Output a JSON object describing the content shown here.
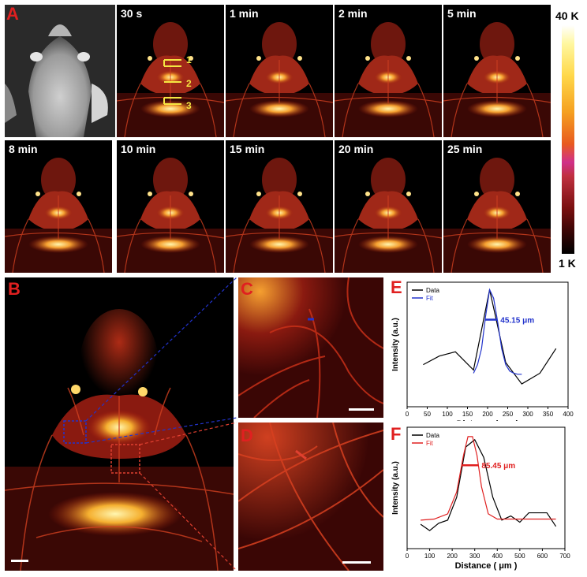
{
  "panel_labels": {
    "A": "A",
    "B": "B",
    "C": "C",
    "D": "D",
    "E": "E",
    "F": "F"
  },
  "timepoints": [
    "30 s",
    "1 min",
    "2 min",
    "5 min",
    "8 min",
    "10 min",
    "15 min",
    "20 min",
    "25 min"
  ],
  "roi_labels": [
    "1",
    "2",
    "3"
  ],
  "colorbar": {
    "max": "40 K",
    "min": "1 K"
  },
  "colors": {
    "label_red": "#e02020",
    "data_black": "#000000",
    "fit_blue": "#2233cc",
    "fit_red": "#e02020",
    "roi_yellow": "#f5e642"
  },
  "chart_data": [
    {
      "type": "line",
      "panel": "E",
      "xlabel": "Distance ( μm )",
      "ylabel": "Intensity (a.u.)",
      "xlim": [
        0,
        400
      ],
      "xticks": [
        0,
        50,
        100,
        150,
        200,
        250,
        300,
        350,
        400
      ],
      "fwhm_label": "45.15 μm",
      "legend": [
        "Data",
        "Fit"
      ],
      "series": [
        {
          "name": "Data",
          "x": [
            40,
            80,
            120,
            165,
            205,
            245,
            285,
            330,
            370
          ],
          "y": [
            0.3,
            0.38,
            0.42,
            0.25,
            1.0,
            0.32,
            0.12,
            0.22,
            0.45
          ]
        },
        {
          "name": "Fit",
          "x": [
            165,
            175,
            185,
            195,
            205,
            215,
            225,
            235,
            245,
            255,
            265,
            275,
            285
          ],
          "y": [
            0.22,
            0.3,
            0.45,
            0.75,
            1.0,
            0.92,
            0.7,
            0.45,
            0.3,
            0.24,
            0.22,
            0.21,
            0.21
          ]
        }
      ]
    },
    {
      "type": "line",
      "panel": "F",
      "xlabel": "Distance ( μm )",
      "ylabel": "Intensity (a.u.)",
      "xlim": [
        0,
        700
      ],
      "xticks": [
        0,
        100,
        200,
        300,
        400,
        500,
        600,
        700
      ],
      "fwhm_label": "85.45 μm",
      "legend": [
        "Data",
        "Fit"
      ],
      "series": [
        {
          "name": "Data",
          "x": [
            60,
            100,
            140,
            180,
            220,
            260,
            300,
            340,
            380,
            420,
            460,
            500,
            540,
            580,
            620,
            660
          ],
          "y": [
            0.14,
            0.08,
            0.15,
            0.18,
            0.4,
            0.88,
            0.95,
            0.78,
            0.4,
            0.18,
            0.22,
            0.16,
            0.25,
            0.25,
            0.25,
            0.12
          ]
        },
        {
          "name": "Fit",
          "x": [
            60,
            120,
            180,
            220,
            250,
            270,
            290,
            310,
            330,
            360,
            400,
            460,
            520,
            600,
            660
          ],
          "y": [
            0.18,
            0.19,
            0.24,
            0.45,
            0.8,
            0.98,
            0.98,
            0.8,
            0.5,
            0.24,
            0.19,
            0.19,
            0.19,
            0.19,
            0.19
          ]
        }
      ]
    }
  ]
}
